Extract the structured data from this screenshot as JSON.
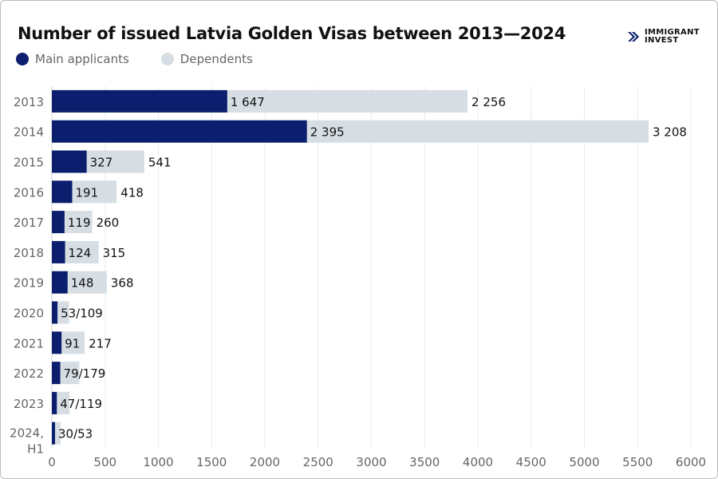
{
  "chart_data": {
    "type": "bar",
    "orientation": "horizontal",
    "stacked": true,
    "title": "Number of issued Latvia Golden Visas between 2013—2024",
    "categories": [
      "2013",
      "2014",
      "2015",
      "2016",
      "2017",
      "2018",
      "2019",
      "2020",
      "2021",
      "2022",
      "2023",
      "2024, H1"
    ],
    "series": [
      {
        "name": "Main applicants",
        "color": "#0b1f6e",
        "values": [
          1647,
          2395,
          327,
          191,
          119,
          124,
          148,
          53,
          91,
          79,
          47,
          30
        ]
      },
      {
        "name": "Dependents",
        "color": "#d6dee4",
        "values": [
          2256,
          3208,
          541,
          418,
          260,
          315,
          368,
          109,
          217,
          179,
          119,
          53
        ]
      }
    ],
    "data_labels": [
      [
        "1 647",
        "2 256"
      ],
      [
        "2 395",
        "3 208"
      ],
      [
        "327",
        "541"
      ],
      [
        "191",
        "418"
      ],
      [
        "119",
        "260"
      ],
      [
        "124",
        "315"
      ],
      [
        "148",
        "368"
      ],
      [
        "53/109",
        ""
      ],
      [
        "91",
        "217"
      ],
      [
        "79/179",
        ""
      ],
      [
        "47/119",
        ""
      ],
      [
        "30/53",
        ""
      ]
    ],
    "xlim": [
      0,
      6000
    ],
    "xticks": [
      "0",
      "500",
      "1000",
      "1500",
      "2000",
      "2500",
      "3000",
      "3500",
      "4000",
      "4500",
      "5000",
      "5500",
      "6000"
    ],
    "grid": true,
    "legend": "top-left"
  },
  "logo": {
    "line1": "IMMIGRANT",
    "line2": "INVEST"
  }
}
